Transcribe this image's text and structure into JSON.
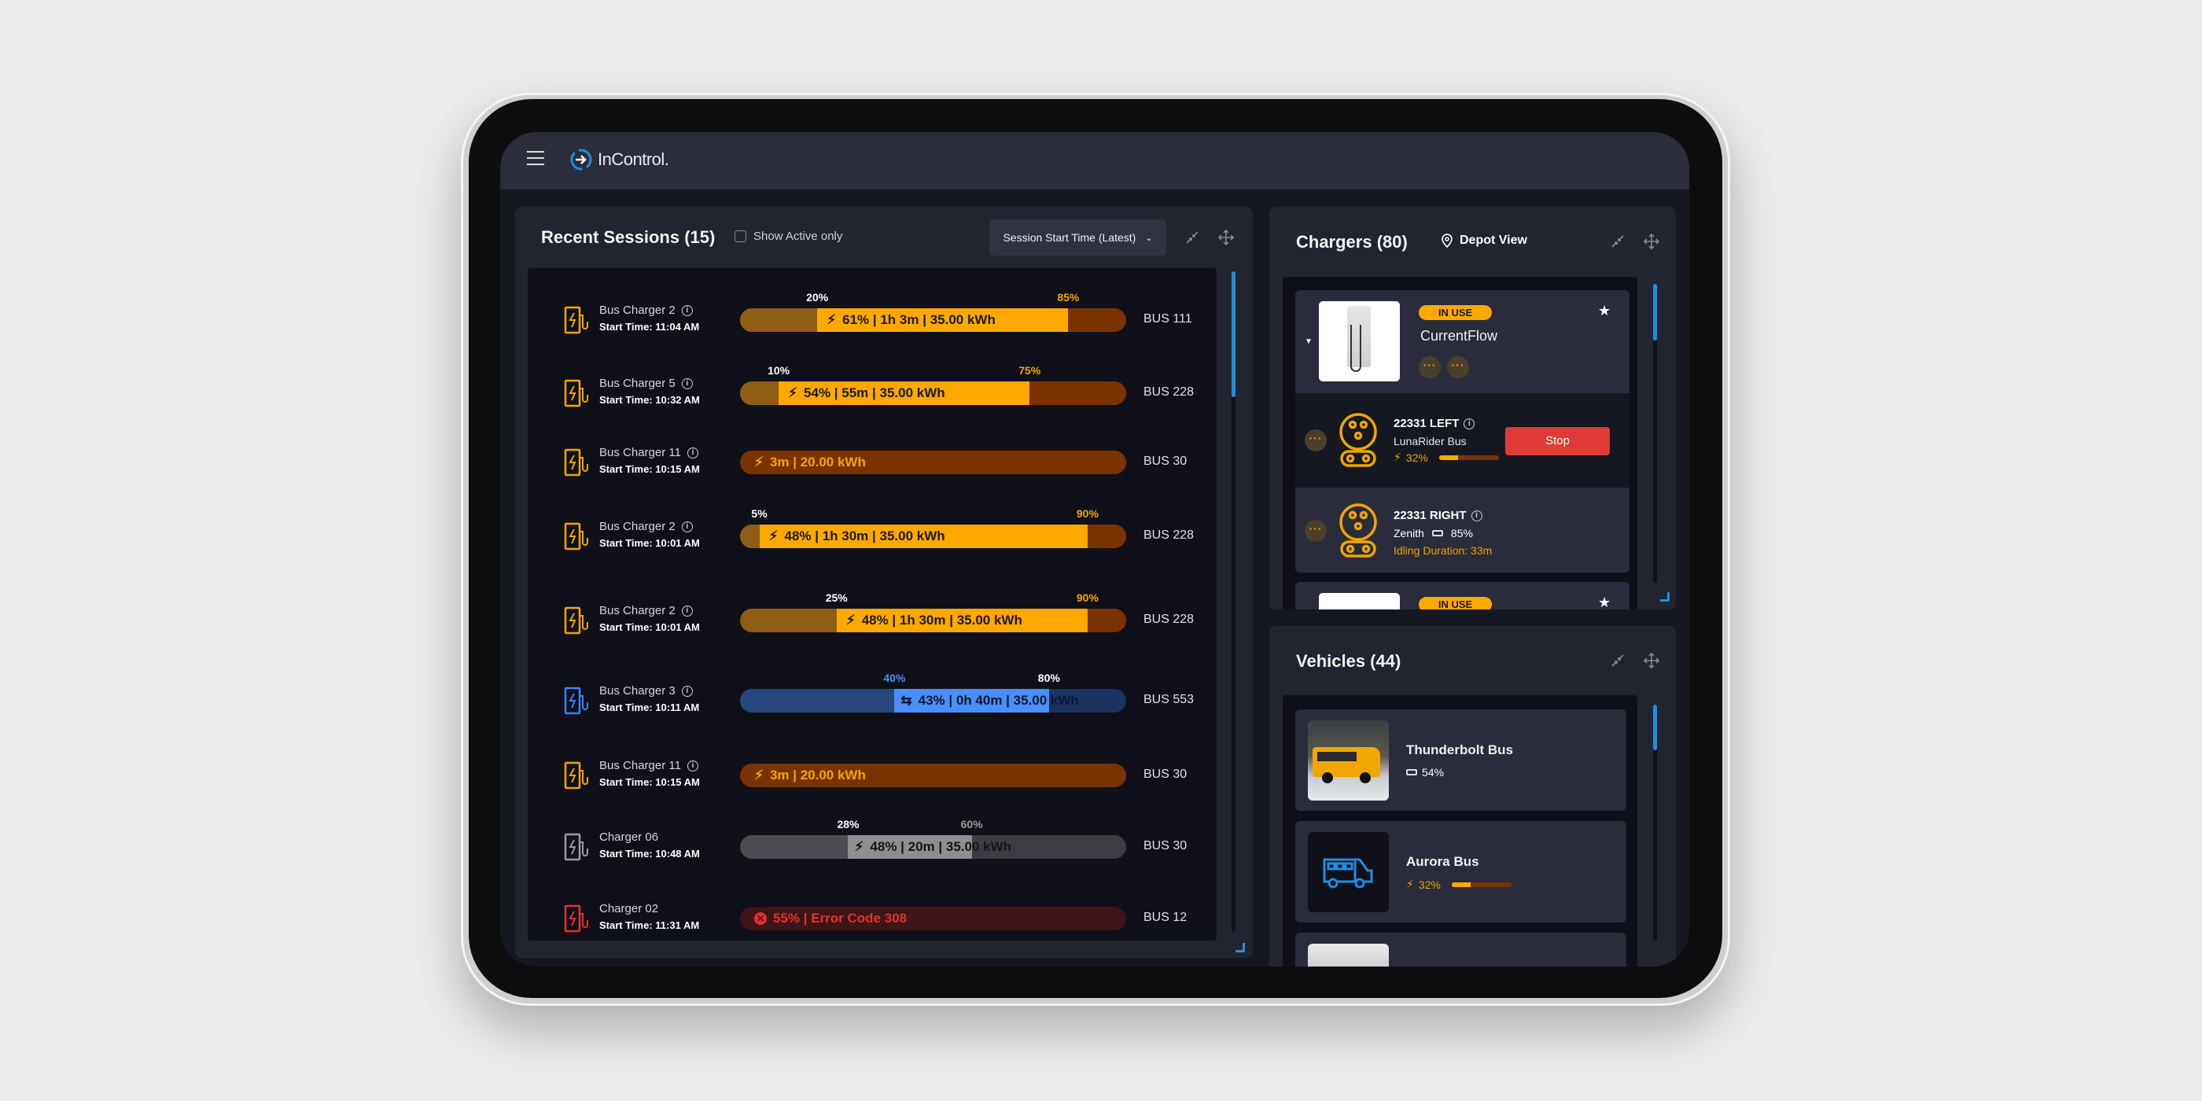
{
  "app": {
    "title": "InControl."
  },
  "sessions": {
    "title": "Recent Sessions (15)",
    "show_active_label": "Show Active only",
    "show_active_checked": false,
    "sort_value": "Session Start Time (Latest)",
    "rows": [
      {
        "charger": "Bus Charger 2",
        "start_time": "Start Time: 11:04 AM",
        "status": "charging",
        "info": true,
        "start": 20,
        "end": 85,
        "start_label": "20%",
        "end_label": "85%",
        "text": "61% | 1h 3m | 35.00 kWh",
        "bus": "BUS 111"
      },
      {
        "charger": "Bus Charger 5",
        "start_time": "Start Time: 10:32 AM",
        "status": "charging",
        "info": true,
        "start": 10,
        "end": 75,
        "start_label": "10%",
        "end_label": "75%",
        "text": "54% | 55m | 35.00 kWh",
        "bus": "BUS 228"
      },
      {
        "charger": "Bus Charger 11",
        "start_time": "Start Time: 10:15 AM",
        "status": "full",
        "info": true,
        "text": "3m | 20.00 kWh",
        "bus": "BUS 30"
      },
      {
        "charger": "Bus Charger 2",
        "start_time": "Start Time: 10:01 AM",
        "status": "charging",
        "info": true,
        "start": 5,
        "end": 90,
        "start_label": "5%",
        "end_label": "90%",
        "text": "48% | 1h 30m | 35.00 kWh",
        "bus": "BUS 228"
      },
      {
        "charger": "Bus Charger 2",
        "start_time": "Start Time: 10:01 AM",
        "status": "charging",
        "info": true,
        "start": 25,
        "end": 90,
        "start_label": "25%",
        "end_label": "90%",
        "text": "48% | 1h 30m | 35.00 kWh",
        "bus": "BUS 228"
      },
      {
        "charger": "Bus Charger 3",
        "start_time": "Start Time: 10:11 AM",
        "status": "bidirectional",
        "info": true,
        "start": 40,
        "end": 80,
        "start_label": "40%",
        "end_label": "80%",
        "text": "43% | 0h 40m | 35.00 kWh",
        "bus": "BUS 553"
      },
      {
        "charger": "Bus Charger 11",
        "start_time": "Start Time: 10:15 AM",
        "status": "full",
        "info": true,
        "text": "3m | 20.00 kWh",
        "bus": "BUS 30"
      },
      {
        "charger": "Charger 06",
        "start_time": "Start Time: 10:48 AM",
        "status": "offline",
        "info": false,
        "start": 28,
        "end": 60,
        "start_label": "28%",
        "end_label": "60%",
        "text": "48% | 20m | 35.00 kWh",
        "bus": "BUS 30"
      },
      {
        "charger": "Charger 02",
        "start_time": "Start Time: 11:31 AM",
        "status": "error",
        "info": false,
        "text": "55% | Error Code 308",
        "bus": "BUS 12"
      }
    ]
  },
  "chargers": {
    "title": "Chargers (80)",
    "depot_view_label": "Depot View",
    "cards": [
      {
        "badge": "IN USE",
        "name": "CurrentFlow",
        "favorite": true,
        "connectors": [
          {
            "id": "22331 LEFT",
            "vehicle": "LunaRider Bus",
            "charge": "32%",
            "charge_level": 32,
            "action": "Stop"
          },
          {
            "id": "22331 RIGHT",
            "vehicle": "Zenith",
            "battery": "85%",
            "idle": "Idling Duration: 33m"
          }
        ]
      },
      {
        "badge": "IN USE",
        "favorite": true
      }
    ]
  },
  "vehicles": {
    "title": "Vehicles (44)",
    "items": [
      {
        "name": "Thunderbolt Bus",
        "battery": "54%"
      },
      {
        "name": "Aurora Bus",
        "charge": "32%",
        "charge_level": 32
      }
    ]
  },
  "colors": {
    "accent": "#1e8fe0",
    "charging": "#ffa800",
    "bidirectional": "#3b82f6",
    "error": "#e5302f",
    "offline": "#8c8c8c",
    "stop": "#e03a36"
  }
}
